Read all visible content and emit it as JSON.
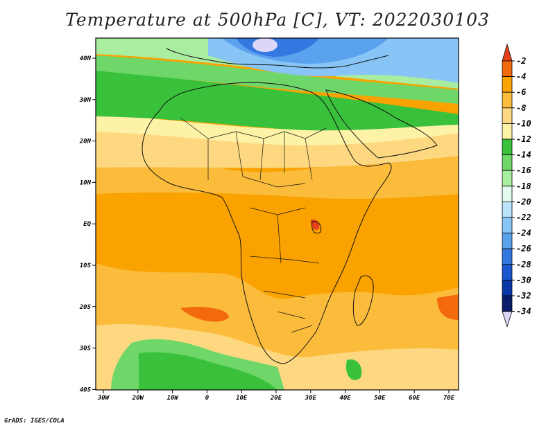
{
  "title": "Temperature at 500hPa [C], VT: 2022030103",
  "credit": "GrADS: IGES/COLA",
  "map": {
    "lon_labels": [
      "30W",
      "20W",
      "10W",
      "0",
      "10E",
      "20E",
      "30E",
      "40E",
      "50E",
      "60E",
      "70E"
    ],
    "lat_labels": [
      "40N",
      "30N",
      "20N",
      "10N",
      "EQ",
      "10S",
      "20S",
      "30S",
      "40S"
    ]
  },
  "colorbar": {
    "labels": [
      "-2",
      "-4",
      "-6",
      "-8",
      "-10",
      "-12",
      "-14",
      "-16",
      "-18",
      "-20",
      "-22",
      "-24",
      "-26",
      "-28",
      "-30",
      "-32",
      "-34"
    ],
    "colors": [
      "#e8401a",
      "#f26a0c",
      "#f9a200",
      "#fbbc3c",
      "#fdd880",
      "#fdf2a6",
      "#39c13c",
      "#6fd66a",
      "#a9eda0",
      "#e3fbee",
      "#b8e3fb",
      "#88c5f6",
      "#5aa2ee",
      "#3377e0",
      "#1a56cf",
      "#0b38a8",
      "#0a1d6a",
      "#dcd7f7"
    ]
  },
  "colors": {
    "ocean_warm": "#f9a200",
    "tropics": "#fbbc3c",
    "subtropics": "#fdd880",
    "mid": "#39c13c",
    "cool": "#a9eda0",
    "cold": "#5aa2ee",
    "hot_spot": "#f26a0c"
  }
}
